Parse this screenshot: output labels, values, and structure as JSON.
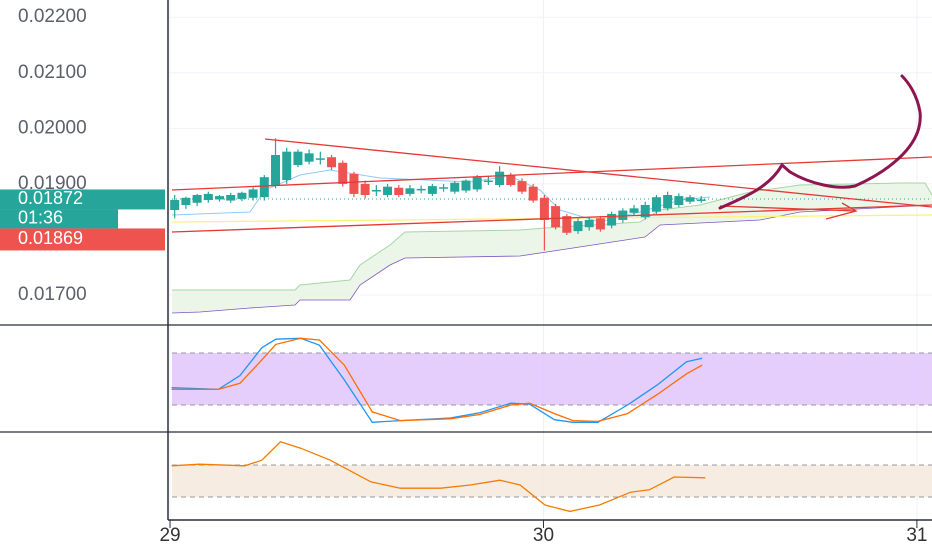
{
  "chart_data": [
    {
      "type": "candlestick",
      "ylim": [
        0.01646,
        0.02231
      ],
      "yticks": [
        {
          "value": 0.017,
          "label": "0.01700"
        },
        {
          "value": 0.019,
          "label": "0.01900"
        },
        {
          "value": 0.02,
          "label": "0.02000"
        },
        {
          "value": 0.021,
          "label": "0.02100"
        },
        {
          "value": 0.022,
          "label": "0.02200"
        }
      ],
      "xlim": [
        -0.13,
        48.97
      ],
      "xticks": [
        {
          "value": 0,
          "label": "29"
        },
        {
          "value": 24,
          "label": "30"
        },
        {
          "value": 48,
          "label": "31"
        }
      ],
      "grid": true,
      "up_color": "#26a69a",
      "down_color": "#ef5350",
      "x": [
        0.3,
        1.02,
        1.74,
        2.46,
        3.18,
        3.9,
        4.62,
        5.34,
        6.06,
        6.78,
        7.5,
        8.22,
        8.94,
        9.66,
        10.38,
        11.1,
        11.82,
        12.54,
        13.26,
        13.98,
        14.7,
        15.42,
        16.14,
        16.86,
        17.58,
        18.3,
        19.02,
        19.74,
        20.46,
        21.18,
        21.9,
        22.62,
        23.34,
        24.06,
        24.78,
        25.5,
        26.22,
        26.94,
        27.66,
        28.38,
        29.1,
        29.82,
        30.54,
        31.26,
        31.98,
        32.7,
        33.42,
        34.14
      ],
      "open": [
        0.01853,
        0.01862,
        0.01866,
        0.01871,
        0.01872,
        0.0187,
        0.01873,
        0.01875,
        0.01876,
        0.01898,
        0.01907,
        0.01934,
        0.0194,
        0.01945,
        0.01948,
        0.01938,
        0.01918,
        0.019,
        0.01888,
        0.0188,
        0.01893,
        0.01882,
        0.0189,
        0.01882,
        0.01893,
        0.01886,
        0.01888,
        0.0189,
        0.01905,
        0.01898,
        0.01915,
        0.01905,
        0.01895,
        0.01875,
        0.0186,
        0.01842,
        0.01815,
        0.01822,
        0.01838,
        0.01825,
        0.01835,
        0.01848,
        0.0184,
        0.0185,
        0.01856,
        0.01862,
        0.01868,
        0.01871
      ],
      "high": [
        0.0188,
        0.01877,
        0.01882,
        0.01886,
        0.0188,
        0.01884,
        0.01886,
        0.01894,
        0.01916,
        0.01982,
        0.01965,
        0.01962,
        0.01962,
        0.01958,
        0.01952,
        0.01942,
        0.01922,
        0.01906,
        0.01898,
        0.019,
        0.01898,
        0.01898,
        0.01897,
        0.019,
        0.019,
        0.01905,
        0.01908,
        0.01916,
        0.01914,
        0.01932,
        0.0192,
        0.0191,
        0.019,
        0.0188,
        0.01864,
        0.01846,
        0.01838,
        0.0184,
        0.01842,
        0.0185,
        0.01856,
        0.01862,
        0.01868,
        0.0188,
        0.01886,
        0.01883,
        0.0188,
        0.01878
      ],
      "low": [
        0.01838,
        0.01855,
        0.0186,
        0.01866,
        0.01868,
        0.01866,
        0.01869,
        0.0187,
        0.0187,
        0.01892,
        0.019,
        0.0193,
        0.01935,
        0.01935,
        0.01925,
        0.01895,
        0.01876,
        0.01874,
        0.01878,
        0.01876,
        0.01876,
        0.01878,
        0.01883,
        0.01878,
        0.01886,
        0.01882,
        0.01884,
        0.01886,
        0.01898,
        0.01894,
        0.01895,
        0.01882,
        0.01866,
        0.0178,
        0.01818,
        0.01808,
        0.0181,
        0.01816,
        0.01814,
        0.0182,
        0.0183,
        0.01844,
        0.01836,
        0.01846,
        0.01852,
        0.01858,
        0.01864,
        0.01866
      ],
      "close": [
        0.01871,
        0.01875,
        0.0188,
        0.01882,
        0.01878,
        0.0188,
        0.01884,
        0.0189,
        0.01912,
        0.01952,
        0.01958,
        0.01958,
        0.01955,
        0.01946,
        0.0193,
        0.019,
        0.01882,
        0.0188,
        0.01889,
        0.01895,
        0.0188,
        0.01892,
        0.01891,
        0.01896,
        0.01894,
        0.01902,
        0.01906,
        0.01912,
        0.01906,
        0.01922,
        0.01898,
        0.01886,
        0.0187,
        0.01835,
        0.01822,
        0.01812,
        0.01833,
        0.01835,
        0.01818,
        0.01846,
        0.01852,
        0.01856,
        0.01862,
        0.01876,
        0.0188,
        0.01878,
        0.01876,
        0.01872
      ],
      "last_price": {
        "value": 0.01872,
        "label": "0.01872"
      },
      "countdown": "01:36",
      "other_price": {
        "value": 0.01869,
        "label": "0.01869"
      }
    },
    {
      "type": "line",
      "ylim": [
        0,
        100
      ],
      "bands": [
        20,
        80
      ],
      "band_color": "#e1c6fb",
      "series": [
        {
          "color": "#2196f3",
          "x": [
            0.1,
            3.1,
            4.5,
            5.9,
            6.8,
            8.4,
            9.6,
            11.2,
            13,
            14.8,
            18,
            19.9,
            21.9,
            23.1,
            24.7,
            25.9,
            27.5,
            29.4,
            31.3,
            33.2,
            34.2
          ],
          "values": [
            40,
            38,
            54,
            86,
            96,
            97,
            89,
            49,
            0,
            2,
            5,
            11,
            22,
            21,
            3,
            0,
            0,
            20,
            43,
            70,
            74
          ]
        },
        {
          "color": "#ff6d00",
          "x": [
            0.1,
            3.1,
            4.5,
            5.9,
            6.8,
            8.4,
            9.6,
            11.2,
            13,
            14.8,
            18,
            19.9,
            21.9,
            23.1,
            24.7,
            25.9,
            27.5,
            29.4,
            31.3,
            33.2,
            34.2
          ],
          "values": [
            38,
            38,
            45,
            72,
            90,
            97,
            95,
            66,
            12,
            2,
            4,
            9,
            20,
            22,
            10,
            2,
            1,
            10,
            32,
            56,
            66
          ]
        }
      ]
    },
    {
      "type": "line",
      "ylim": [
        0,
        100
      ],
      "bands": [
        30,
        70
      ],
      "band_color": "#f4e9dc",
      "series": [
        {
          "color": "#f57c00",
          "x": [
            0.1,
            1.9,
            4.8,
            5.9,
            7.1,
            8.4,
            10.3,
            12.9,
            14.8,
            17.4,
            19.3,
            21.2,
            22.5,
            24.1,
            25.7,
            27.6,
            29.6,
            30.8,
            32.4,
            34.4
          ],
          "values": [
            69,
            71,
            69,
            76,
            99,
            91,
            76,
            49,
            41,
            41,
            45,
            51,
            45,
            20,
            12,
            20,
            36,
            39,
            55,
            54
          ]
        }
      ]
    }
  ]
}
